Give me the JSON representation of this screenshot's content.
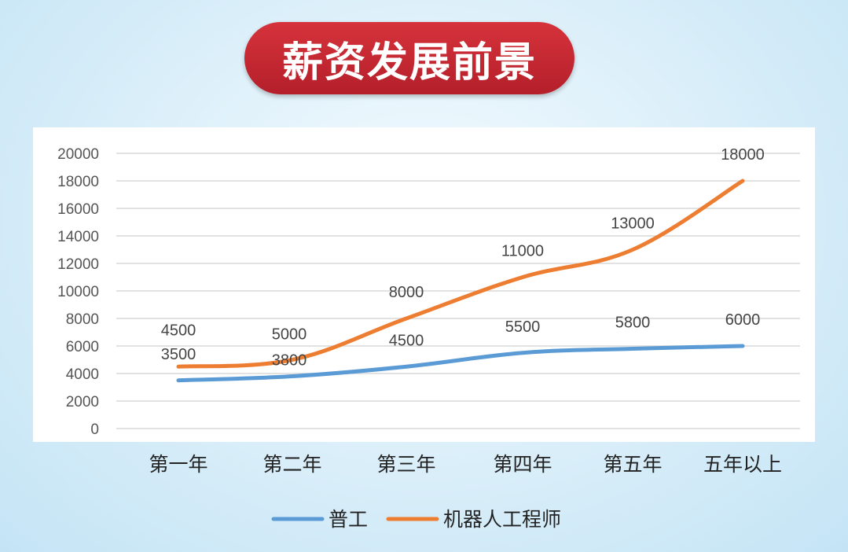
{
  "title": "薪资发展前景",
  "chart_data": {
    "type": "line",
    "categories": [
      "第一年",
      "第二年",
      "第三年",
      "第四年",
      "第五年",
      "五年以上"
    ],
    "series": [
      {
        "name": "普工",
        "values": [
          3500,
          3800,
          4500,
          5500,
          5800,
          6000
        ],
        "color": "#5b9bd5"
      },
      {
        "name": "机器人工程师",
        "values": [
          4500,
          5000,
          8000,
          11000,
          13000,
          18000
        ],
        "color": "#ed7d31"
      }
    ],
    "ylim": [
      0,
      20000
    ],
    "yticks": [
      0,
      2000,
      4000,
      6000,
      8000,
      10000,
      12000,
      14000,
      16000,
      18000,
      20000
    ],
    "grid": true,
    "legend_position": "bottom",
    "data_labels": true
  }
}
